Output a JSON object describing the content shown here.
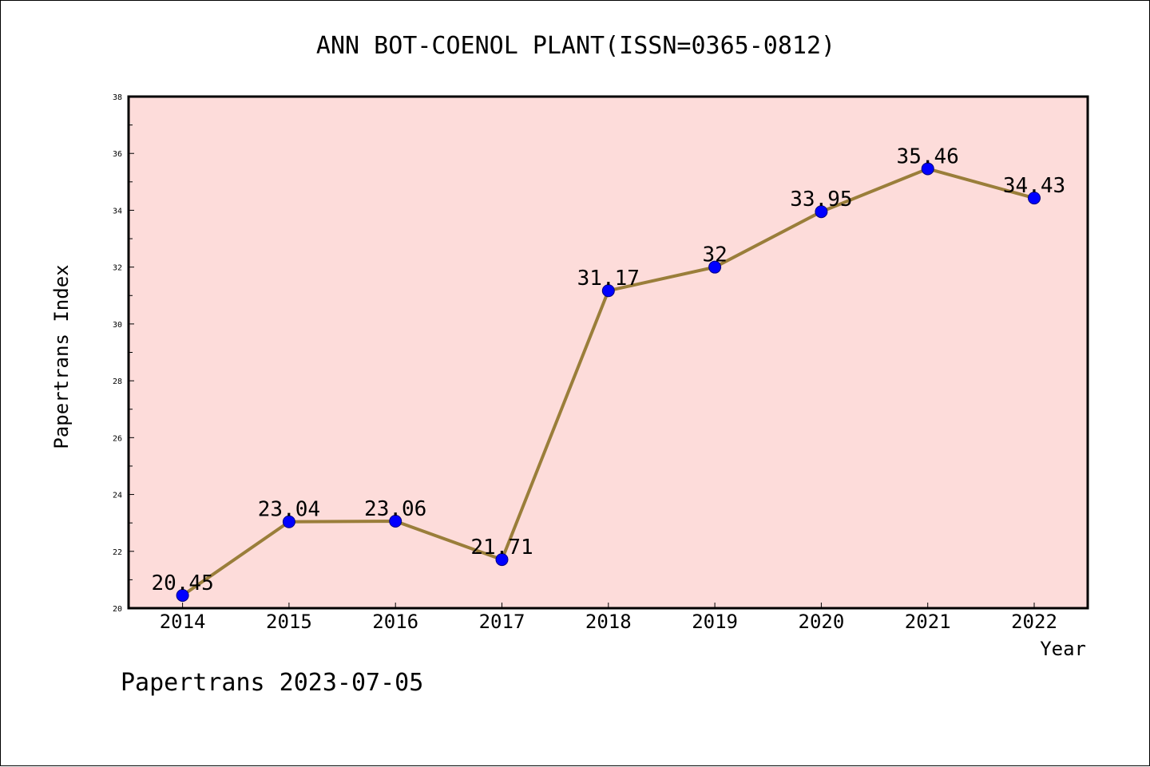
{
  "chart_data": {
    "type": "line",
    "title": "ANN BOT-COENOL PLANT(ISSN=0365-0812)",
    "xlabel": "Year",
    "ylabel": "Papertrans Index",
    "categories": [
      "2014",
      "2015",
      "2016",
      "2017",
      "2018",
      "2019",
      "2020",
      "2021",
      "2022"
    ],
    "series": [
      {
        "values": [
          20.45,
          23.04,
          23.06,
          21.71,
          31.17,
          32,
          33.95,
          35.46,
          34.43
        ],
        "labels": [
          "20.45",
          "23.04",
          "23.06",
          "21.71",
          "31.17",
          "32",
          "33.95",
          "35.46",
          "34.43"
        ]
      }
    ],
    "ylim": [
      20,
      38
    ],
    "yticks": [
      "20",
      "22",
      "24",
      "26",
      "28",
      "30",
      "32",
      "34",
      "36",
      "38"
    ],
    "grid": false,
    "legend": "none",
    "footer": "Papertrans 2023-07-05"
  },
  "colors": {
    "plot_background": "#fddcda",
    "line": "#9a7e3a",
    "marker": "#0000ff",
    "marker_edge": "#000080",
    "axes": "#000000"
  }
}
